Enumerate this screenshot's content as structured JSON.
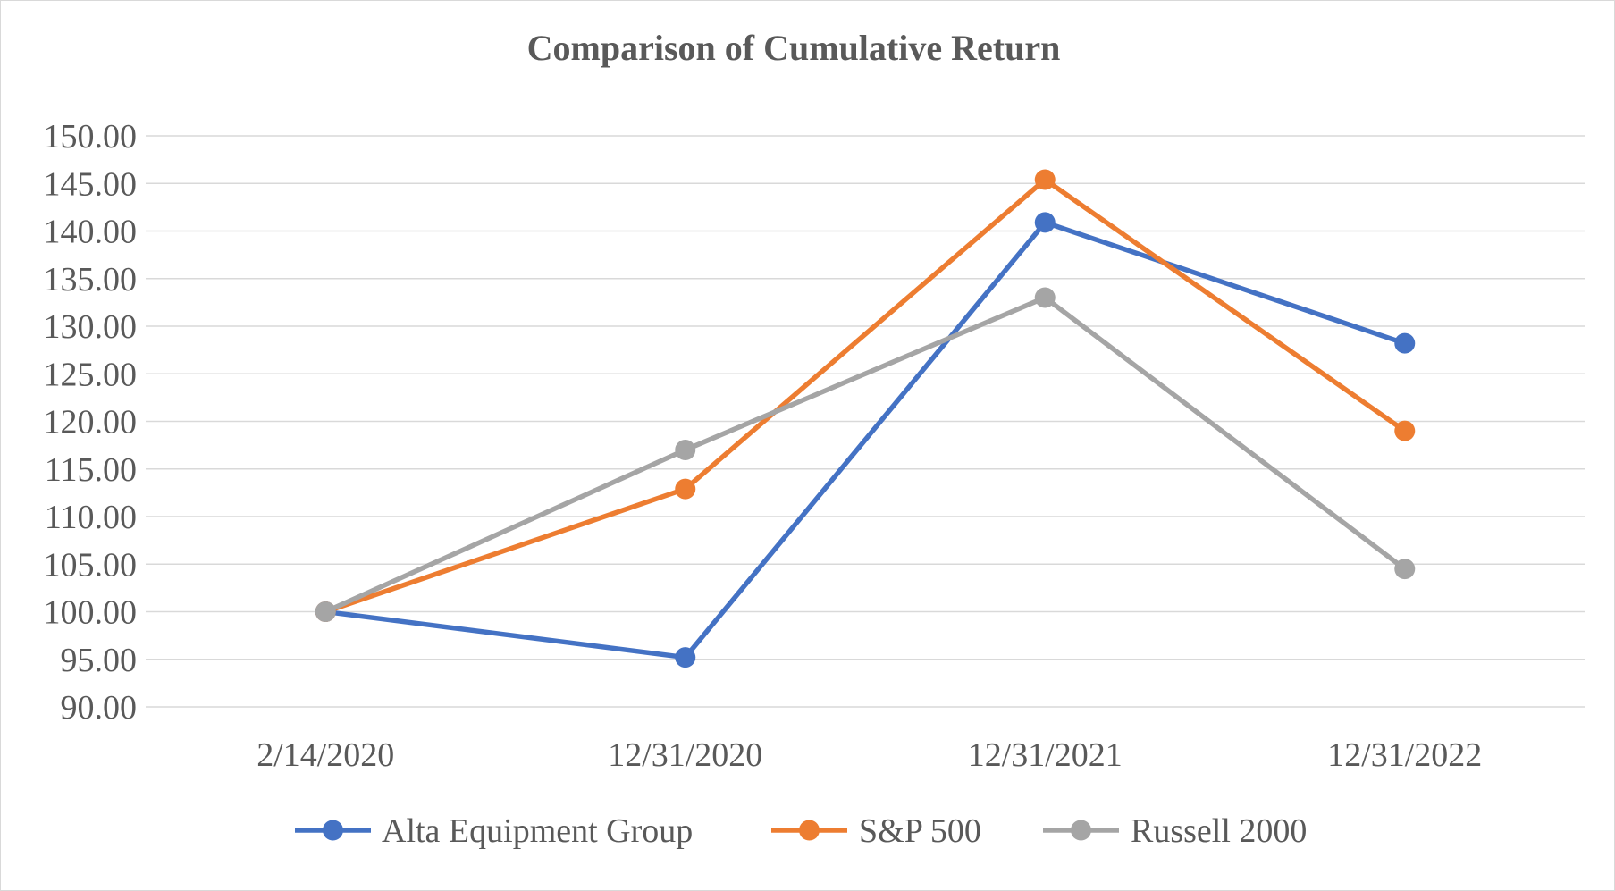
{
  "chart_data": {
    "type": "line",
    "title": "Comparison of Cumulative Return",
    "xlabel": "",
    "ylabel": "",
    "categories": [
      "2/14/2020",
      "12/31/2020",
      "12/31/2021",
      "12/31/2022"
    ],
    "yticks": [
      "90.00",
      "95.00",
      "100.00",
      "105.00",
      "110.00",
      "115.00",
      "120.00",
      "125.00",
      "130.00",
      "135.00",
      "140.00",
      "145.00",
      "150.00"
    ],
    "ylim": [
      90,
      150
    ],
    "grid": true,
    "legend_position": "bottom",
    "series": [
      {
        "name": "Alta Equipment Group",
        "color": "#4472C4",
        "values": [
          100.0,
          95.2,
          140.9,
          128.2
        ]
      },
      {
        "name": "S&P 500",
        "color": "#ED7D31",
        "values": [
          100.0,
          112.9,
          145.4,
          119.0
        ]
      },
      {
        "name": "Russell 2000",
        "color": "#A5A5A5",
        "values": [
          100.0,
          117.0,
          133.0,
          104.5
        ]
      }
    ]
  }
}
